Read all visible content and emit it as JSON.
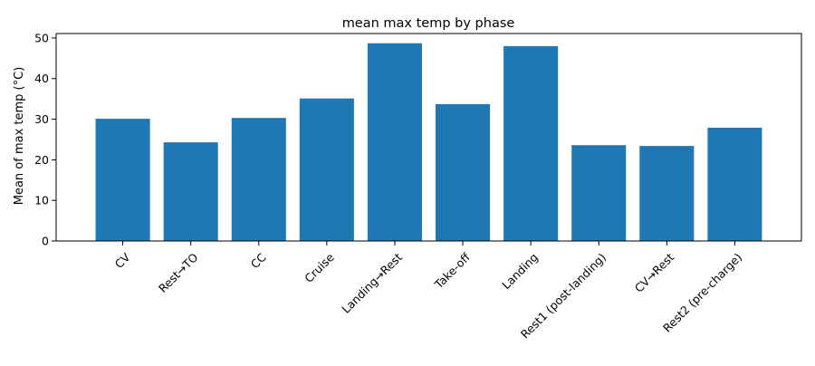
{
  "chart_data": {
    "type": "bar",
    "title": "mean max temp by phase",
    "xlabel": "",
    "ylabel": "Mean of max temp (°C)",
    "categories": [
      "CV",
      "Rest→TO",
      "CC",
      "Cruise",
      "Landing→Rest",
      "Take-off",
      "Landing",
      "Rest1 (post-landing)",
      "CV→Rest",
      "Rest2 (pre-charge)"
    ],
    "values": [
      30.1,
      24.3,
      30.3,
      35.1,
      48.7,
      33.7,
      48.0,
      23.6,
      23.4,
      27.9
    ],
    "ylim": [
      0,
      51.1
    ],
    "yticks": [
      0,
      10,
      20,
      30,
      40,
      50
    ],
    "grid": false,
    "legend": "none",
    "colors": {
      "bar": "#1f77b4",
      "axis": "#000000",
      "background": "#ffffff"
    }
  }
}
